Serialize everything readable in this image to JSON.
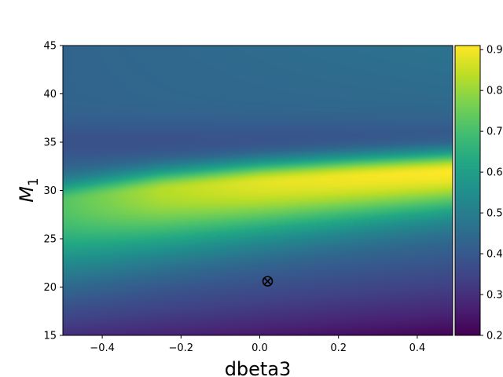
{
  "chart_data": {
    "type": "heatmap",
    "title": "",
    "xlabel": "dbeta3",
    "ylabel": "M",
    "ylabel_subscript": "1",
    "xlim": [
      -0.5,
      0.49
    ],
    "ylim": [
      15,
      45
    ],
    "x_ticks": [
      {
        "value": -0.4,
        "label": "−0.4"
      },
      {
        "value": -0.2,
        "label": "−0.2"
      },
      {
        "value": 0.0,
        "label": "0.0"
      },
      {
        "value": 0.2,
        "label": "0.2"
      },
      {
        "value": 0.4,
        "label": "0.4"
      }
    ],
    "y_ticks": [
      {
        "value": 15,
        "label": "15"
      },
      {
        "value": 20,
        "label": "20"
      },
      {
        "value": 25,
        "label": "25"
      },
      {
        "value": 30,
        "label": "30"
      },
      {
        "value": 35,
        "label": "35"
      },
      {
        "value": 40,
        "label": "40"
      },
      {
        "value": 45,
        "label": "45"
      }
    ],
    "ridge": {
      "description": "high-value band; center rises left to right",
      "x": [
        -0.5,
        -0.25,
        0.0,
        0.25,
        0.49
      ],
      "center_y": [
        28.8,
        30.0,
        30.8,
        31.4,
        31.9
      ],
      "peak_value": [
        0.72,
        0.83,
        0.88,
        0.9,
        0.91
      ]
    },
    "marker": {
      "x": 0.02,
      "y": 20.6,
      "symbol": "⊗"
    },
    "colorbar": {
      "colormap": "viridis",
      "range": [
        0.2,
        0.91
      ],
      "ticks": [
        {
          "value": 0.2,
          "label": "0.2"
        },
        {
          "value": 0.3,
          "label": "0.3"
        },
        {
          "value": 0.4,
          "label": "0.4"
        },
        {
          "value": 0.5,
          "label": "0.5"
        },
        {
          "value": 0.6,
          "label": "0.6"
        },
        {
          "value": 0.7,
          "label": "0.7"
        },
        {
          "value": 0.8,
          "label": "0.8"
        },
        {
          "value": 0.9,
          "label": "0.9"
        }
      ]
    }
  }
}
